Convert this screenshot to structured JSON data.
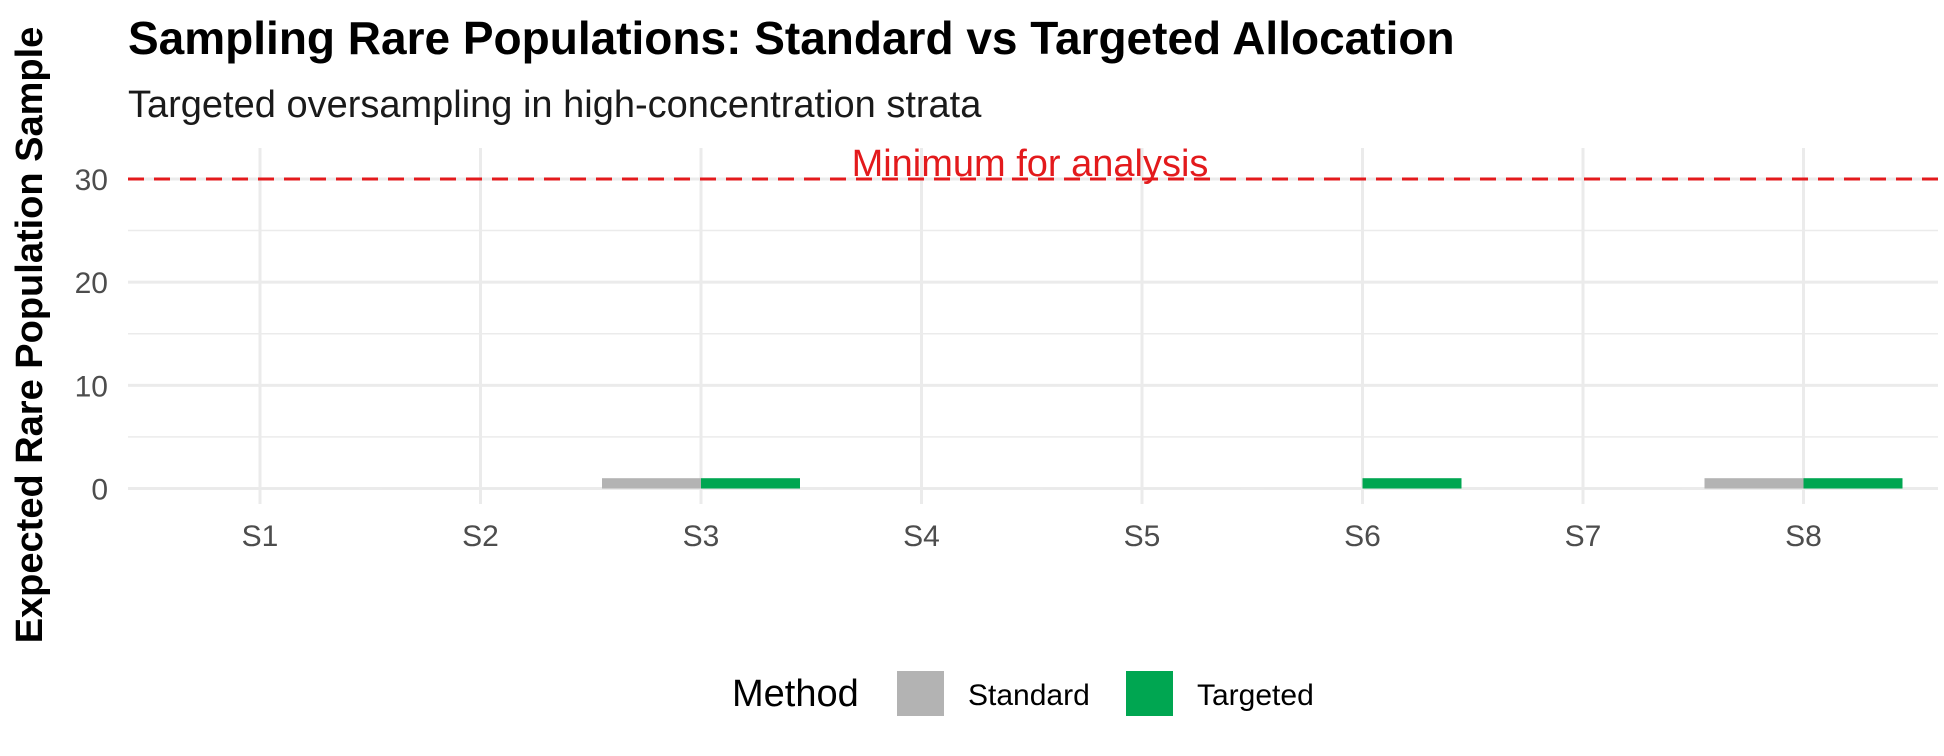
{
  "chart_data": {
    "type": "bar",
    "title": "Sampling Rare Populations: Standard vs Targeted Allocation",
    "subtitle": "Targeted oversampling in high-concentration strata",
    "xlabel": "",
    "ylabel": "Expected Rare Population Sample",
    "categories": [
      "S1",
      "S2",
      "S3",
      "S4",
      "S5",
      "S6",
      "S7",
      "S8"
    ],
    "series": [
      {
        "name": "Standard",
        "color": "#b3b3b3",
        "values": [
          0,
          0,
          1,
          0,
          0,
          0,
          0,
          1
        ]
      },
      {
        "name": "Targeted",
        "color": "#00a651",
        "values": [
          0,
          0,
          1,
          0,
          0,
          1,
          0,
          1
        ]
      }
    ],
    "ylim": [
      -1.5,
      33
    ],
    "yticks": [
      0,
      10,
      20,
      30
    ],
    "grid": true,
    "legend": {
      "title": "Method",
      "position": "bottom"
    },
    "reference_line": {
      "value": 30,
      "label": "Minimum for analysis",
      "color": "#e31a1c",
      "style": "dashed"
    }
  }
}
